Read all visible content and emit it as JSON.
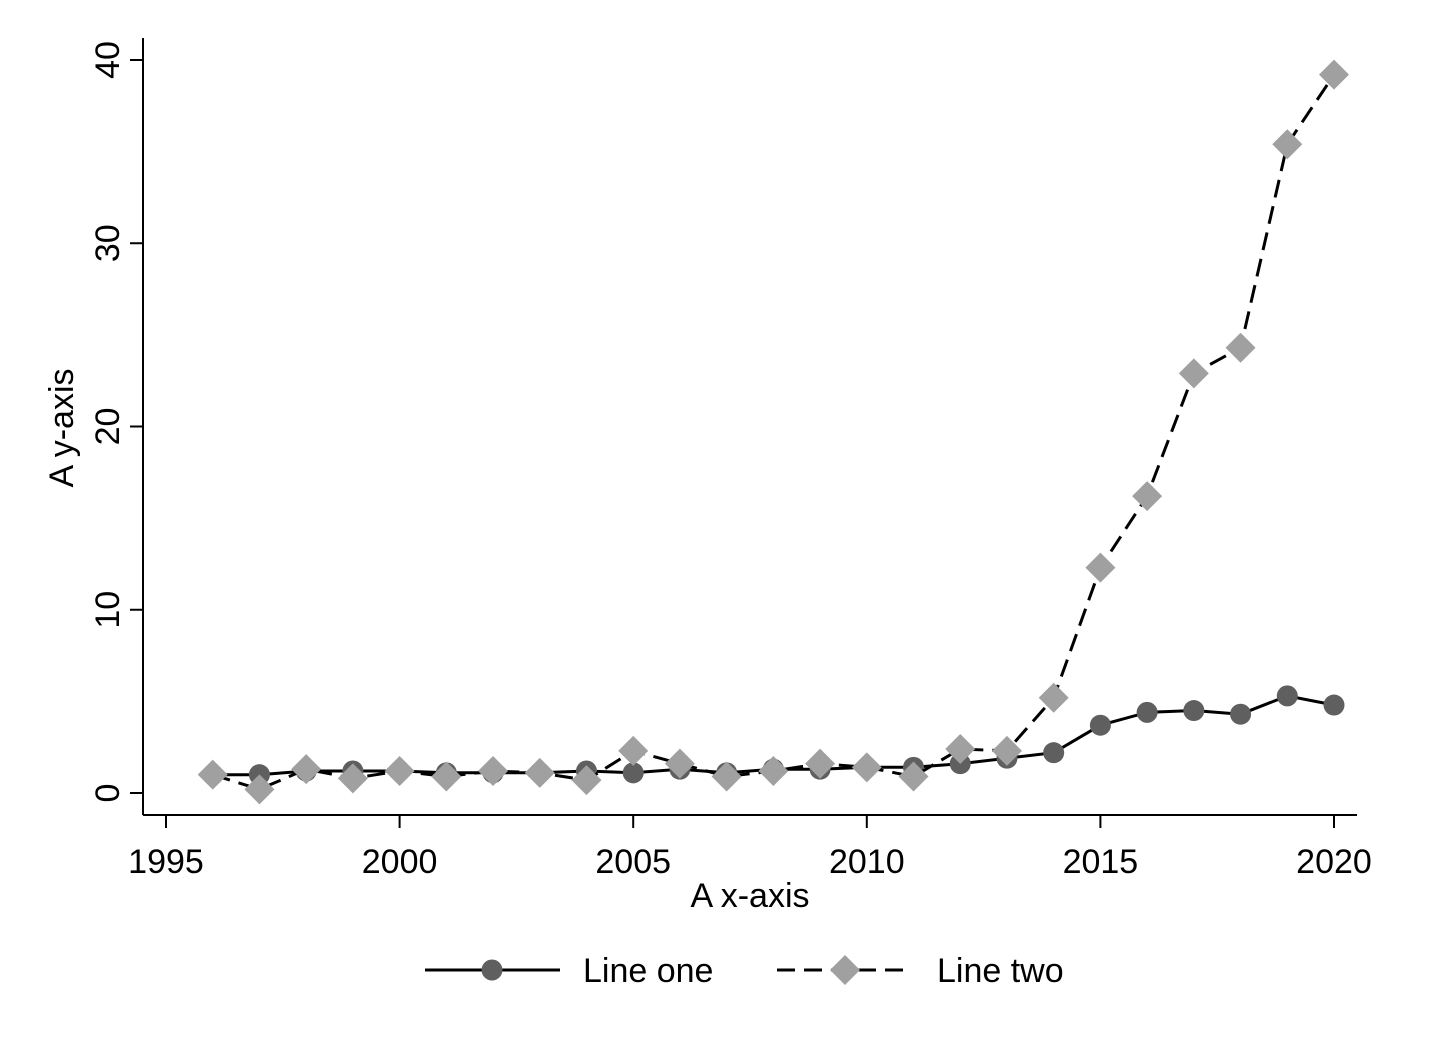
{
  "chart_data": {
    "type": "line",
    "title": "",
    "xlabel": "A x-axis",
    "ylabel": "A y-axis",
    "xlim": [
      1995,
      2020
    ],
    "ylim": [
      0,
      40
    ],
    "xticks": [
      1995,
      2000,
      2005,
      2010,
      2015,
      2020
    ],
    "yticks": [
      0,
      10,
      20,
      30,
      40
    ],
    "grid": false,
    "legend_position": "bottom",
    "x": [
      1996,
      1997,
      1998,
      1999,
      2000,
      2001,
      2002,
      2003,
      2004,
      2005,
      2006,
      2007,
      2008,
      2009,
      2010,
      2011,
      2012,
      2013,
      2014,
      2015,
      2016,
      2017,
      2018,
      2019,
      2020
    ],
    "series": [
      {
        "name": "Line one",
        "color": "#5f5f5f",
        "line_style": "solid",
        "marker": "circle",
        "values": [
          1.0,
          1.0,
          1.2,
          1.2,
          1.2,
          1.1,
          1.1,
          1.1,
          1.2,
          1.1,
          1.3,
          1.1,
          1.3,
          1.3,
          1.4,
          1.4,
          1.6,
          1.9,
          2.2,
          3.7,
          4.4,
          4.5,
          4.3,
          5.3,
          4.8
        ]
      },
      {
        "name": "Line two",
        "color": "#a0a0a0",
        "line_style": "dashed",
        "marker": "diamond",
        "values": [
          1.0,
          0.2,
          1.3,
          0.8,
          1.2,
          0.9,
          1.2,
          1.1,
          0.7,
          2.3,
          1.6,
          0.9,
          1.2,
          1.6,
          1.4,
          0.9,
          2.4,
          2.3,
          5.2,
          12.3,
          16.2,
          22.9,
          24.3,
          35.4,
          39.2
        ]
      }
    ]
  }
}
